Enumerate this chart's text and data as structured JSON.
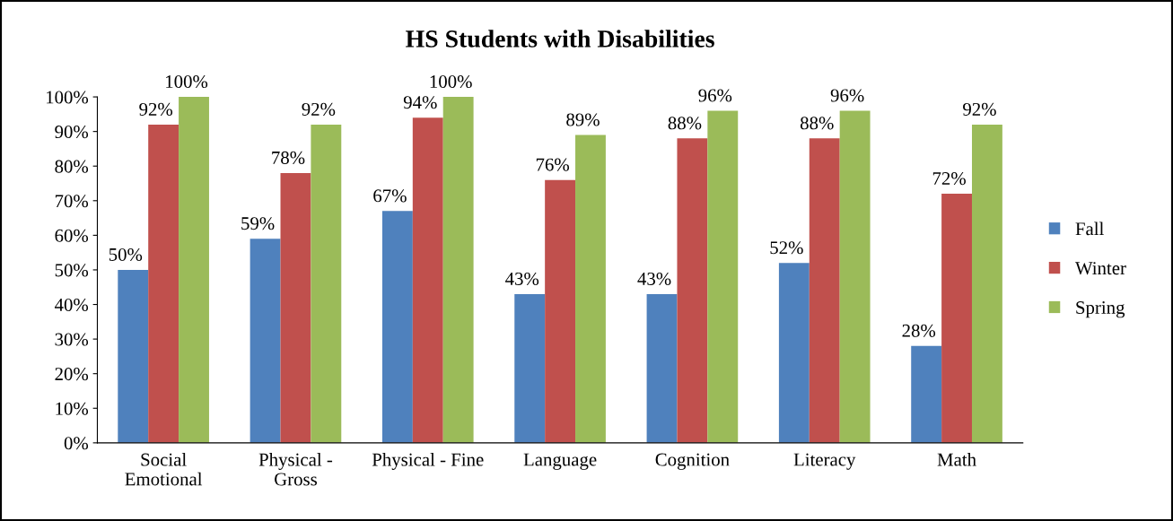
{
  "chart_data": {
    "type": "bar",
    "title": "HS Students with Disabilities",
    "categories": [
      "Social\nEmotional",
      "Physical -\nGross",
      "Physical - Fine",
      "Language",
      "Cognition",
      "Literacy",
      "Math"
    ],
    "series": [
      {
        "name": "Fall",
        "color": "#4f81bd",
        "values": [
          50,
          59,
          67,
          43,
          43,
          52,
          28
        ],
        "value_labels": [
          "50%",
          "59%",
          "67%",
          "43%",
          "43%",
          "52%",
          "28%"
        ]
      },
      {
        "name": "Winter",
        "color": "#c0504d",
        "values": [
          92,
          78,
          94,
          76,
          88,
          88,
          72
        ],
        "value_labels": [
          "92%",
          "78%",
          "94%",
          "76%",
          "88%",
          "88%",
          "72%"
        ]
      },
      {
        "name": "Spring",
        "color": "#9bbb59",
        "values": [
          100,
          92,
          100,
          89,
          96,
          96,
          92
        ],
        "value_labels": [
          "100%",
          "92%",
          "100%",
          "89%",
          "96%",
          "96%",
          "92%"
        ]
      }
    ],
    "ylim": [
      0,
      100
    ],
    "yticks": [
      {
        "value": 0,
        "label": "0%"
      },
      {
        "value": 10,
        "label": "10%"
      },
      {
        "value": 20,
        "label": "20%"
      },
      {
        "value": 30,
        "label": "30%"
      },
      {
        "value": 40,
        "label": "40%"
      },
      {
        "value": 50,
        "label": "50%"
      },
      {
        "value": 60,
        "label": "60%"
      },
      {
        "value": 70,
        "label": "70%"
      },
      {
        "value": 80,
        "label": "80%"
      },
      {
        "value": 90,
        "label": "90%"
      },
      {
        "value": 100,
        "label": "100%"
      }
    ],
    "grid": false,
    "legend": "right"
  }
}
